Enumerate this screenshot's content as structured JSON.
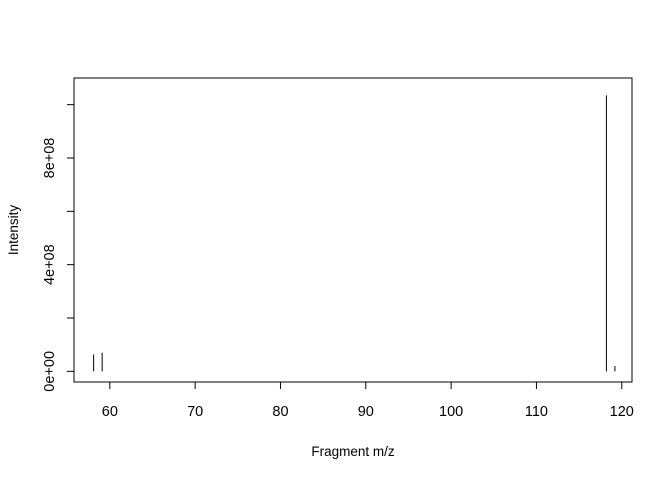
{
  "chart_data": {
    "type": "bar",
    "title": "",
    "xlabel": "Fragment m/z",
    "ylabel": "Intensity",
    "xlim": [
      55.8,
      121.2
    ],
    "ylim": [
      -40000000,
      1100000000
    ],
    "xticks": [
      60,
      70,
      80,
      90,
      100,
      110,
      120
    ],
    "yticks_labeled": [
      {
        "value": 0,
        "label": "0e+00"
      },
      {
        "value": 400000000,
        "label": "4e+08"
      },
      {
        "value": 800000000,
        "label": "8e+08"
      }
    ],
    "yticks_all": [
      0,
      200000000,
      400000000,
      600000000,
      800000000,
      1000000000
    ],
    "grid": false,
    "points": [
      {
        "x": 58.1,
        "y": 63000000
      },
      {
        "x": 59.1,
        "y": 70000000
      },
      {
        "x": 118.2,
        "y": 1035000000
      },
      {
        "x": 119.2,
        "y": 20000000
      }
    ]
  }
}
